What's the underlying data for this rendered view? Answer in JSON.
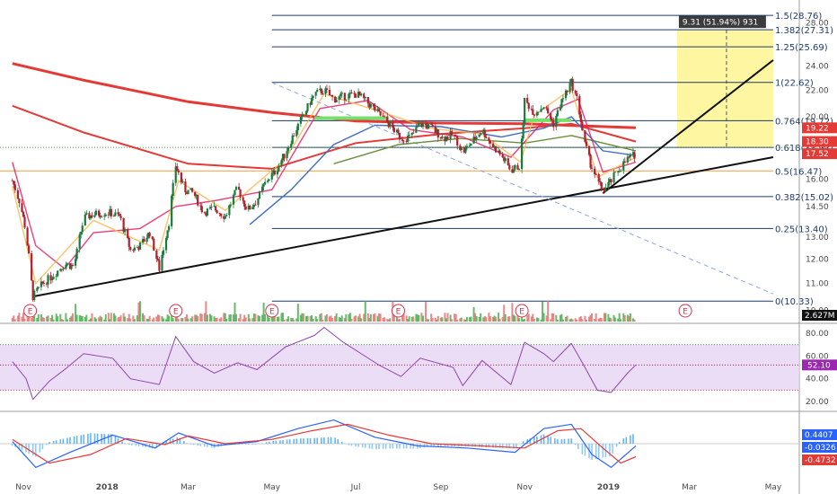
{
  "chart_data": [
    {
      "type": "candlestick",
      "panel": "price",
      "x_ticks": [
        "Nov",
        "2018",
        "Mar",
        "May",
        "Jul",
        "Sep",
        "Nov",
        "2019",
        "Mar",
        "May"
      ],
      "y_ticks": [
        10.0,
        11.0,
        12.0,
        13.0,
        14.5,
        16.0,
        18.0,
        20.0,
        22.0,
        24.0,
        28.0
      ],
      "ylim": [
        9.6,
        30.0
      ],
      "scale": "log",
      "close_path": [
        [
          "2017-10-24",
          15.9
        ],
        [
          "2017-10-30",
          14.6
        ],
        [
          "2017-11-03",
          13.2
        ],
        [
          "2017-11-08",
          10.5
        ],
        [
          "2017-11-15",
          11.0
        ],
        [
          "2017-11-22",
          11.3
        ],
        [
          "2017-12-01",
          11.8
        ],
        [
          "2017-12-08",
          11.7
        ],
        [
          "2017-12-15",
          13.9
        ],
        [
          "2017-12-22",
          14.1
        ],
        [
          "2018-01-02",
          14.2
        ],
        [
          "2018-01-10",
          14.0
        ],
        [
          "2018-01-18",
          12.4
        ],
        [
          "2018-01-25",
          12.6
        ],
        [
          "2018-02-01",
          13.2
        ],
        [
          "2018-02-08",
          11.6
        ],
        [
          "2018-02-15",
          13.7
        ],
        [
          "2018-02-20",
          16.8
        ],
        [
          "2018-02-26",
          15.4
        ],
        [
          "2018-03-05",
          15.2
        ],
        [
          "2018-03-12",
          14.2
        ],
        [
          "2018-03-20",
          14.4
        ],
        [
          "2018-03-28",
          14.0
        ],
        [
          "2018-04-06",
          15.5
        ],
        [
          "2018-04-13",
          14.3
        ],
        [
          "2018-04-20",
          14.8
        ],
        [
          "2018-04-27",
          15.9
        ],
        [
          "2018-05-04",
          16.5
        ],
        [
          "2018-05-11",
          17.6
        ],
        [
          "2018-05-18",
          19.0
        ],
        [
          "2018-05-25",
          20.3
        ],
        [
          "2018-06-01",
          21.7
        ],
        [
          "2018-06-08",
          22.0
        ],
        [
          "2018-06-15",
          21.3
        ],
        [
          "2018-06-22",
          21.5
        ],
        [
          "2018-07-02",
          21.7
        ],
        [
          "2018-07-10",
          21.0
        ],
        [
          "2018-07-18",
          20.2
        ],
        [
          "2018-07-26",
          19.4
        ],
        [
          "2018-08-03",
          18.5
        ],
        [
          "2018-08-10",
          18.6
        ],
        [
          "2018-08-17",
          19.5
        ],
        [
          "2018-08-24",
          19.3
        ],
        [
          "2018-09-03",
          18.5
        ],
        [
          "2018-09-10",
          18.8
        ],
        [
          "2018-09-17",
          17.6
        ],
        [
          "2018-09-24",
          18.3
        ],
        [
          "2018-10-01",
          19.1
        ],
        [
          "2018-10-08",
          18.1
        ],
        [
          "2018-10-15",
          17.4
        ],
        [
          "2018-10-22",
          16.5
        ],
        [
          "2018-10-29",
          16.8
        ],
        [
          "2018-11-01",
          21.2
        ],
        [
          "2018-11-08",
          20.3
        ],
        [
          "2018-11-15",
          20.8
        ],
        [
          "2018-11-22",
          19.5
        ],
        [
          "2018-11-29",
          21.4
        ],
        [
          "2018-12-05",
          22.6
        ],
        [
          "2018-12-10",
          21.0
        ],
        [
          "2018-12-14",
          18.4
        ],
        [
          "2018-12-19",
          16.9
        ],
        [
          "2018-12-24",
          15.9
        ],
        [
          "2018-12-28",
          15.3
        ],
        [
          "2019-01-03",
          15.9
        ],
        [
          "2019-01-09",
          16.6
        ],
        [
          "2019-01-15",
          17.2
        ],
        [
          "2019-01-21",
          17.5
        ]
      ],
      "moving_averages": [
        {
          "color": "#e53935",
          "values": [
            [
              "2017-10-24",
              24.2
            ],
            [
              "2017-12-15",
              22.8
            ],
            [
              "2018-03-01",
              21.1
            ],
            [
              "2018-05-01",
              20.3
            ],
            [
              "2018-07-01",
              19.7
            ],
            [
              "2018-09-01",
              19.55
            ],
            [
              "2018-11-01",
              19.5
            ],
            [
              "2019-01-21",
              19.22
            ]
          ]
        },
        {
          "color": "#e53935",
          "values": [
            [
              "2017-10-24",
              20.8
            ],
            [
              "2017-12-15",
              18.9
            ],
            [
              "2018-03-01",
              16.9
            ],
            [
              "2018-05-01",
              16.6
            ],
            [
              "2018-07-01",
              18.2
            ],
            [
              "2018-09-01",
              18.8
            ],
            [
              "2018-11-01",
              19.2
            ],
            [
              "2018-12-05",
              19.5
            ],
            [
              "2019-01-21",
              18.3
            ]
          ]
        },
        {
          "color": "#6b8e3d",
          "values": [
            [
              "2018-06-15",
              16.9
            ],
            [
              "2018-08-01",
              18.1
            ],
            [
              "2018-09-15",
              18.5
            ],
            [
              "2018-11-01",
              18.2
            ],
            [
              "2018-12-05",
              18.7
            ],
            [
              "2019-01-21",
              17.7
            ]
          ]
        },
        {
          "color": "#3f6ec6",
          "values": [
            [
              "2018-04-15",
              13.6
            ],
            [
              "2018-05-15",
              15.4
            ],
            [
              "2018-06-15",
              18.1
            ],
            [
              "2018-07-15",
              19.4
            ],
            [
              "2018-09-01",
              19.3
            ],
            [
              "2018-10-15",
              18.6
            ],
            [
              "2018-11-15",
              19.2
            ],
            [
              "2018-12-05",
              20.0
            ],
            [
              "2018-12-28",
              17.7
            ],
            [
              "2019-01-21",
              17.4
            ]
          ]
        },
        {
          "color": "#e91e63",
          "values": [
            [
              "2017-10-24",
              17.0
            ],
            [
              "2017-11-10",
              12.6
            ],
            [
              "2017-12-01",
              11.6
            ],
            [
              "2017-12-22",
              13.2
            ],
            [
              "2018-01-25",
              13.4
            ],
            [
              "2018-02-20",
              14.5
            ],
            [
              "2018-03-20",
              14.8
            ],
            [
              "2018-05-01",
              15.4
            ],
            [
              "2018-06-05",
              20.6
            ],
            [
              "2018-07-10",
              21.2
            ],
            [
              "2018-08-10",
              19.1
            ],
            [
              "2018-09-17",
              18.6
            ],
            [
              "2018-10-22",
              17.3
            ],
            [
              "2018-11-22",
              20.5
            ],
            [
              "2018-12-10",
              21.3
            ],
            [
              "2018-12-28",
              16.4
            ],
            [
              "2019-01-21",
              17.0
            ]
          ]
        },
        {
          "color": "#ffb74d",
          "values": [
            [
              "2017-10-24",
              15.6
            ],
            [
              "2017-11-10",
              11.0
            ],
            [
              "2017-12-22",
              13.8
            ],
            [
              "2018-02-08",
              12.4
            ],
            [
              "2018-02-22",
              15.9
            ],
            [
              "2018-03-28",
              14.3
            ],
            [
              "2018-05-11",
              17.2
            ],
            [
              "2018-06-08",
              21.7
            ],
            [
              "2018-07-18",
              20.4
            ],
            [
              "2018-08-24",
              19.2
            ],
            [
              "2018-10-01",
              18.8
            ],
            [
              "2018-10-29",
              17.0
            ],
            [
              "2018-11-08",
              20.1
            ],
            [
              "2018-12-05",
              22.1
            ],
            [
              "2018-12-24",
              16.1
            ],
            [
              "2019-01-21",
              17.3
            ]
          ]
        }
      ],
      "fib_levels": [
        {
          "label": "0(10.33)",
          "value": 10.33
        },
        {
          "label": "0.25(13.40)",
          "value": 13.4
        },
        {
          "label": "0.382(15.02)",
          "value": 15.02
        },
        {
          "label": "0.5(16.47)",
          "value": 16.47
        },
        {
          "label": "0.618(17.92)",
          "value": 17.92
        },
        {
          "label": "0.764(19.72)",
          "value": 19.72
        },
        {
          "label": "1(22.62)",
          "value": 22.62
        },
        {
          "label": "1.25(25.69)",
          "value": 25.69
        },
        {
          "label": "1.382(27.31)",
          "value": 27.31
        },
        {
          "label": "1.5(28.76)",
          "value": 28.76
        }
      ],
      "fib_start": "2018-05-01",
      "fib_end": "2019-05-01",
      "trendlines": [
        {
          "color": "#111111",
          "from": [
            "2017-11-08",
            10.5
          ],
          "to": [
            "2019-05-01",
            17.3
          ]
        },
        {
          "color": "#111111",
          "from": [
            "2018-12-28",
            15.2
          ],
          "to": [
            "2019-05-01",
            24.5
          ]
        },
        {
          "color": "#8aa7e0",
          "dashed": true,
          "from": [
            "2018-05-01",
            22.6
          ],
          "to": [
            "2019-05-01",
            10.6
          ]
        }
      ],
      "target_zone": {
        "from": "2019-02-20",
        "to": "2019-05-01",
        "low": 17.92,
        "high": 27.31,
        "marker_date": "2019-03-28"
      },
      "measure_label": "9.31 (51.94%) 931",
      "price_tags": [
        {
          "value": 19.22,
          "label": "19.22",
          "color": "#e53935"
        },
        {
          "value": 18.3,
          "label": "18.30",
          "color": "#e53935"
        },
        {
          "value": 17.52,
          "label": "17.52",
          "color": "#e53935"
        }
      ],
      "earnings_dates": [
        "2017-11-06",
        "2018-02-20",
        "2018-05-01",
        "2018-08-01",
        "2018-10-30",
        "2019-02-26"
      ],
      "earnings_label": "E"
    },
    {
      "type": "bar",
      "panel": "volume",
      "volume_label": "2.627M"
    },
    {
      "type": "line",
      "panel": "rsi",
      "y_ticks": [
        20.0,
        40.0,
        60.0,
        80.0
      ],
      "ylim": [
        13,
        87
      ],
      "bands": [
        30,
        70
      ],
      "last_value": "52.10",
      "values": [
        [
          "2017-10-24",
          55
        ],
        [
          "2017-11-03",
          40
        ],
        [
          "2017-11-08",
          22
        ],
        [
          "2017-11-20",
          38
        ],
        [
          "2017-12-01",
          48
        ],
        [
          "2017-12-15",
          62
        ],
        [
          "2018-01-05",
          58
        ],
        [
          "2018-01-18",
          40
        ],
        [
          "2018-02-08",
          35
        ],
        [
          "2018-02-20",
          77
        ],
        [
          "2018-03-05",
          55
        ],
        [
          "2018-03-20",
          45
        ],
        [
          "2018-04-06",
          54
        ],
        [
          "2018-04-20",
          48
        ],
        [
          "2018-05-11",
          68
        ],
        [
          "2018-06-01",
          78
        ],
        [
          "2018-06-08",
          85
        ],
        [
          "2018-06-22",
          72
        ],
        [
          "2018-07-18",
          52
        ],
        [
          "2018-08-03",
          42
        ],
        [
          "2018-08-17",
          58
        ],
        [
          "2018-09-10",
          50
        ],
        [
          "2018-09-17",
          34
        ],
        [
          "2018-10-01",
          56
        ],
        [
          "2018-10-22",
          35
        ],
        [
          "2018-11-01",
          72
        ],
        [
          "2018-11-15",
          62
        ],
        [
          "2018-11-22",
          55
        ],
        [
          "2018-12-05",
          71
        ],
        [
          "2018-12-14",
          52
        ],
        [
          "2018-12-24",
          30
        ],
        [
          "2019-01-03",
          28
        ],
        [
          "2019-01-15",
          45
        ],
        [
          "2019-01-21",
          52.1
        ]
      ]
    },
    {
      "type": "line",
      "panel": "macd",
      "ylim": [
        -0.75,
        0.75
      ],
      "value_tags": [
        {
          "label": "0.4407",
          "color": "#2962ff"
        },
        {
          "label": "-0.0326",
          "color": "#2962ff"
        },
        {
          "label": "-0.4732",
          "color": "#e53935"
        }
      ],
      "macd": [
        [
          "2017-10-24",
          0.05
        ],
        [
          "2017-11-10",
          -0.55
        ],
        [
          "2017-12-05",
          -0.2
        ],
        [
          "2018-01-05",
          0.2
        ],
        [
          "2018-02-05",
          -0.1
        ],
        [
          "2018-02-22",
          0.25
        ],
        [
          "2018-03-20",
          -0.05
        ],
        [
          "2018-04-20",
          0.05
        ],
        [
          "2018-05-20",
          0.35
        ],
        [
          "2018-06-15",
          0.55
        ],
        [
          "2018-07-15",
          0.15
        ],
        [
          "2018-08-15",
          -0.05
        ],
        [
          "2018-09-20",
          -0.1
        ],
        [
          "2018-10-25",
          -0.2
        ],
        [
          "2018-11-15",
          0.35
        ],
        [
          "2018-12-05",
          0.45
        ],
        [
          "2018-12-20",
          -0.25
        ],
        [
          "2019-01-03",
          -0.55
        ],
        [
          "2019-01-21",
          -0.05
        ]
      ],
      "signal": [
        [
          "2017-10-24",
          0.1
        ],
        [
          "2017-11-20",
          -0.45
        ],
        [
          "2017-12-20",
          -0.25
        ],
        [
          "2018-01-15",
          0.12
        ],
        [
          "2018-02-12",
          -0.02
        ],
        [
          "2018-03-01",
          0.18
        ],
        [
          "2018-03-28",
          0.0
        ],
        [
          "2018-05-01",
          0.1
        ],
        [
          "2018-05-30",
          0.3
        ],
        [
          "2018-06-25",
          0.45
        ],
        [
          "2018-07-25",
          0.2
        ],
        [
          "2018-08-25",
          0.0
        ],
        [
          "2018-09-30",
          -0.05
        ],
        [
          "2018-11-01",
          -0.1
        ],
        [
          "2018-11-25",
          0.3
        ],
        [
          "2018-12-12",
          0.35
        ],
        [
          "2018-12-28",
          -0.1
        ],
        [
          "2019-01-10",
          -0.45
        ],
        [
          "2019-01-21",
          -0.3
        ]
      ]
    }
  ]
}
